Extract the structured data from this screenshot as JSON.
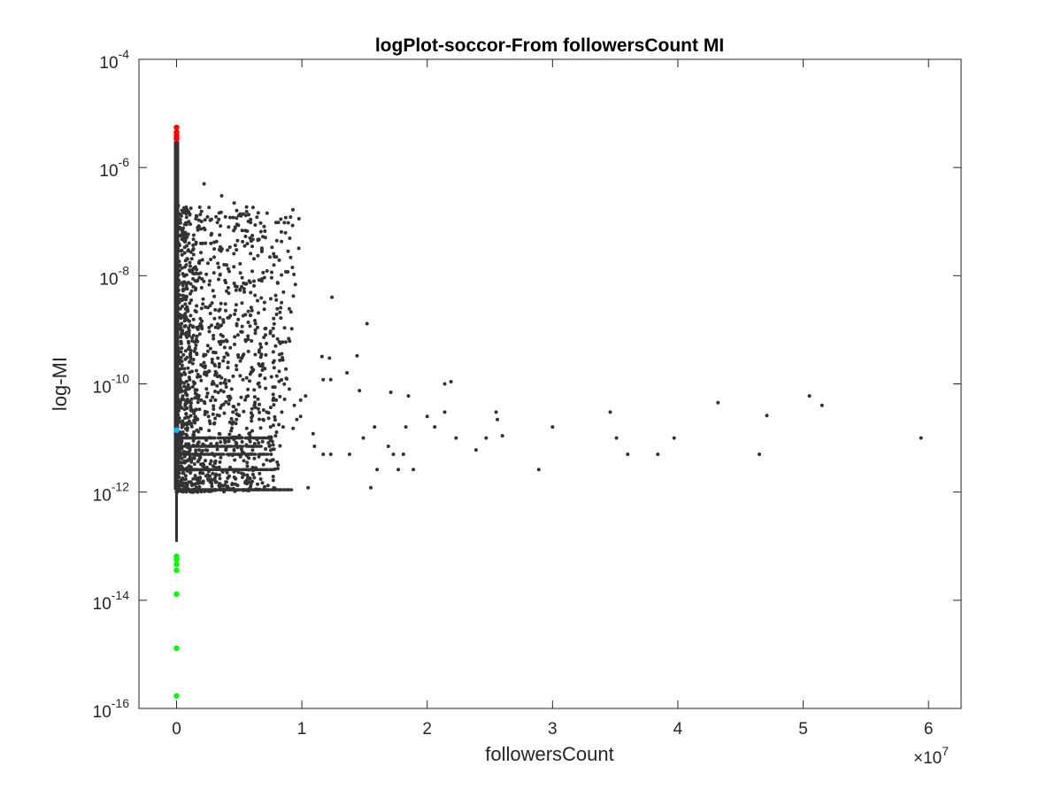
{
  "chart_data": {
    "type": "scatter",
    "title": "logPlot-soccor-From followersCount MI",
    "xlabel": "followersCount",
    "ylabel": "log-MI",
    "x_scale": "linear",
    "y_scale": "log",
    "x_multiplier_label": "×10",
    "x_multiplier_exponent": "7",
    "xlim": [
      -3000000,
      62600000
    ],
    "ylim": [
      1e-16,
      0.0001
    ],
    "grid": false,
    "legend": "none",
    "x_ticks": [
      {
        "value": 0,
        "label": "0"
      },
      {
        "value": 10000000,
        "label": "1"
      },
      {
        "value": 20000000,
        "label": "2"
      },
      {
        "value": 30000000,
        "label": "3"
      },
      {
        "value": 40000000,
        "label": "4"
      },
      {
        "value": 50000000,
        "label": "5"
      },
      {
        "value": 60000000,
        "label": "6"
      }
    ],
    "y_ticks": [
      {
        "value": 1e-16,
        "base": "10",
        "exp": "-16"
      },
      {
        "value": 1e-14,
        "base": "10",
        "exp": "-14"
      },
      {
        "value": 1e-12,
        "base": "10",
        "exp": "-12"
      },
      {
        "value": 1e-10,
        "base": "10",
        "exp": "-10"
      },
      {
        "value": 1e-08,
        "base": "10",
        "exp": "-8"
      },
      {
        "value": 1e-06,
        "base": "10",
        "exp": "-6"
      },
      {
        "value": 0.0001,
        "base": "10",
        "exp": "-4"
      }
    ],
    "colors": {
      "main": "#333333",
      "top": "#ff0000",
      "bottom": "#00ff00",
      "highlight": "#00bfff",
      "axes": "#262626"
    },
    "series": [
      {
        "color_key": "main",
        "points": [
          [
            2200000,
            5e-07
          ],
          [
            3600000,
            3e-07
          ],
          [
            4600000,
            2.2e-07
          ],
          [
            4800000,
            1.6e-07
          ],
          [
            6500000,
            4.5e-08
          ],
          [
            6800000,
            2.8e-08
          ],
          [
            12400000,
            4e-09
          ],
          [
            15200000,
            1.3e-09
          ],
          [
            7900000,
            5e-10
          ],
          [
            8200000,
            6e-10
          ],
          [
            11600000,
            3.2e-10
          ],
          [
            12200000,
            3e-10
          ],
          [
            14400000,
            3.3e-10
          ],
          [
            11700000,
            1.2e-10
          ],
          [
            12300000,
            1.2e-10
          ],
          [
            13600000,
            1.6e-10
          ],
          [
            14600000,
            7.5e-11
          ],
          [
            17100000,
            7e-11
          ],
          [
            18500000,
            6e-11
          ],
          [
            21400000,
            1e-10
          ],
          [
            21900000,
            1.1e-10
          ],
          [
            20000000,
            2.5e-11
          ],
          [
            21400000,
            3e-11
          ],
          [
            25500000,
            3e-11
          ],
          [
            25600000,
            2.2e-11
          ],
          [
            22300000,
            1e-11
          ],
          [
            24700000,
            1e-11
          ],
          [
            26000000,
            1.1e-11
          ],
          [
            23900000,
            6e-12
          ],
          [
            30000000,
            1.6e-11
          ],
          [
            34600000,
            3e-11
          ],
          [
            35100000,
            1e-11
          ],
          [
            39700000,
            1e-11
          ],
          [
            43200000,
            4.5e-11
          ],
          [
            47100000,
            2.6e-11
          ],
          [
            50500000,
            6e-11
          ],
          [
            51500000,
            4e-11
          ],
          [
            59400000,
            1e-11
          ],
          [
            36000000,
            5e-12
          ],
          [
            38400000,
            5e-12
          ],
          [
            46500000,
            5e-12
          ],
          [
            28900000,
            2.6e-12
          ],
          [
            15500000,
            1.2e-12
          ],
          [
            10500000,
            1.2e-12
          ],
          [
            17300000,
            5e-12
          ],
          [
            18100000,
            5e-12
          ],
          [
            17700000,
            2.6e-12
          ],
          [
            18900000,
            2.6e-12
          ],
          [
            16900000,
            7e-12
          ],
          [
            15800000,
            1.6e-11
          ],
          [
            14900000,
            1e-11
          ],
          [
            13800000,
            5e-12
          ],
          [
            12300000,
            5e-12
          ],
          [
            11700000,
            5e-12
          ],
          [
            11000000,
            7e-12
          ],
          [
            10900000,
            1.2e-11
          ],
          [
            9900000,
            2.5e-11
          ],
          [
            9400000,
            4e-11
          ],
          [
            10300000,
            6e-11
          ],
          [
            8500000,
            1.6e-11
          ],
          [
            7900000,
            1.1e-11
          ],
          [
            7400000,
            7e-12
          ],
          [
            16000000,
            2.6e-12
          ],
          [
            18300000,
            1.6e-11
          ],
          [
            20600000,
            1.6e-11
          ],
          [
            9900000,
            5e-11
          ],
          [
            7000000,
            2.4e-09
          ],
          [
            6800000,
            8e-09
          ],
          [
            5800000,
            8e-09
          ],
          [
            5400000,
            5e-09
          ],
          [
            4600000,
            7.2e-09
          ],
          [
            3800000,
            1.6e-08
          ],
          [
            3000000,
            2.2e-08
          ],
          [
            2800000,
            6e-08
          ],
          [
            2300000,
            4e-08
          ],
          [
            1700000,
            7e-08
          ],
          [
            4200000,
            1.2e-08
          ],
          [
            5500000,
            1.9e-09
          ],
          [
            6300000,
            1.3e-09
          ],
          [
            6600000,
            4.2e-10
          ],
          [
            7100000,
            8e-10
          ],
          [
            5200000,
            3e-10
          ],
          [
            4900000,
            8e-10
          ],
          [
            8000000,
            1.4e-10
          ],
          [
            9000000,
            8e-11
          ],
          [
            7700000,
            5e-11
          ],
          [
            6500000,
            1e-10
          ],
          [
            6000000,
            2e-10
          ],
          [
            5700000,
            6e-11
          ],
          [
            3900000,
            3e-09
          ],
          [
            3300000,
            3e-10
          ],
          [
            3600000,
            4e-11
          ],
          [
            8400000,
            3e-11
          ],
          [
            6900000,
            2.2e-11
          ],
          [
            5600000,
            1.5e-11
          ],
          [
            4400000,
            8e-11
          ],
          [
            4100000,
            2e-10
          ],
          [
            2600000,
            1.1e-09
          ],
          [
            2100000,
            3e-09
          ],
          [
            1500000,
            8e-09
          ],
          [
            1100000,
            1.2e-08
          ],
          [
            1900000,
            1.6e-09
          ],
          [
            2500000,
            4e-10
          ],
          [
            2900000,
            1.1e-10
          ],
          [
            3100000,
            5e-11
          ],
          [
            4500000,
            3e-11
          ],
          [
            5000000,
            2.6e-11
          ],
          [
            7200000,
            3e-11
          ],
          [
            7500000,
            1.6e-11
          ],
          [
            9600000,
            2.2e-11
          ],
          [
            9300000,
            1.5e-11
          ],
          [
            6200000,
            4e-11
          ],
          [
            5300000,
            1.2e-10
          ],
          [
            3400000,
            6e-10
          ],
          [
            2700000,
            2e-09
          ],
          [
            2000000,
            6e-09
          ],
          [
            1300000,
            3e-08
          ],
          [
            800000,
            1.2e-07
          ],
          [
            600000,
            1.8e-07
          ],
          [
            1000000,
            4e-08
          ]
        ]
      },
      {
        "color_key": "top",
        "points": [
          [
            0,
            5.5e-06
          ],
          [
            0,
            4.5e-06
          ],
          [
            0,
            4e-06
          ],
          [
            0,
            3.6e-06
          ],
          [
            0,
            3.3e-06
          ]
        ]
      },
      {
        "color_key": "highlight",
        "points": [
          [
            0,
            1.4e-11
          ]
        ]
      },
      {
        "color_key": "bottom",
        "points": [
          [
            0,
            6.5e-14
          ],
          [
            0,
            5.7e-14
          ],
          [
            0,
            4.6e-14
          ],
          [
            0,
            3.6e-14
          ],
          [
            0,
            1.3e-14
          ],
          [
            0,
            1.3e-15
          ],
          [
            0,
            1.7e-16
          ]
        ]
      }
    ]
  }
}
